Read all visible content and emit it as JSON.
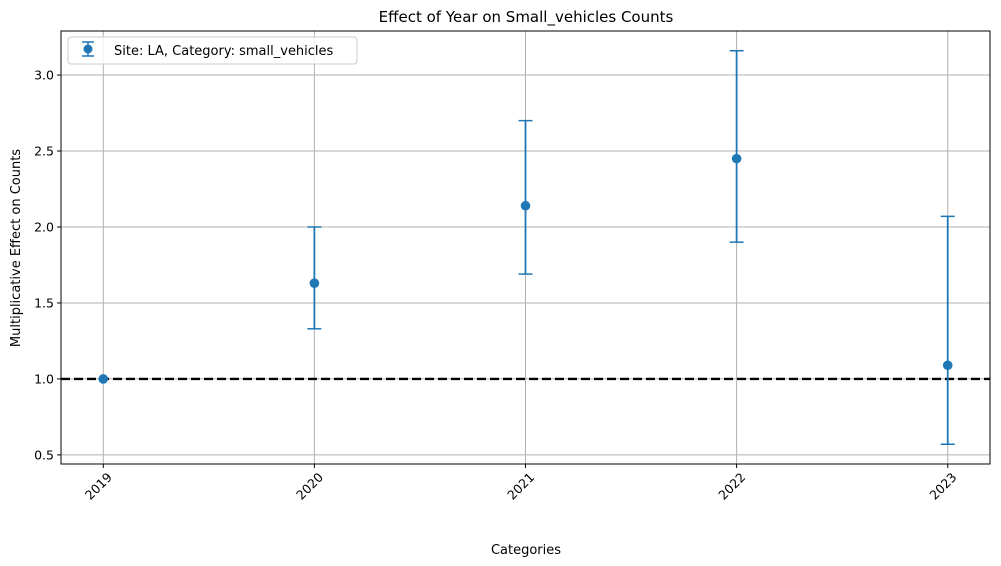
{
  "chart_data": {
    "type": "scatter",
    "title": "Effect of Year on Small_vehicles Counts",
    "xlabel": "Categories",
    "ylabel": "Multiplicative Effect on Counts",
    "categories": [
      "2019",
      "2020",
      "2021",
      "2022",
      "2023"
    ],
    "ylim": [
      0.44,
      3.29
    ],
    "yticks": [
      0.5,
      1.0,
      1.5,
      2.0,
      2.5,
      3.0
    ],
    "ytick_labels": [
      "0.5",
      "1.0",
      "1.5",
      "2.0",
      "2.5",
      "3.0"
    ],
    "grid": true,
    "reference_line": 1.0,
    "legend_position": "top-left",
    "series": [
      {
        "name": "Site: LA, Category: small_vehicles",
        "values": [
          1.0,
          1.63,
          2.14,
          2.45,
          1.09
        ],
        "lower": [
          1.0,
          1.33,
          1.69,
          1.9,
          0.57
        ],
        "upper": [
          1.0,
          2.0,
          2.7,
          3.16,
          2.07
        ]
      }
    ],
    "colors": {
      "series": "#1f77b4",
      "grid": "#b0b0b0",
      "reference": "#000000",
      "frame": "#000000"
    }
  }
}
